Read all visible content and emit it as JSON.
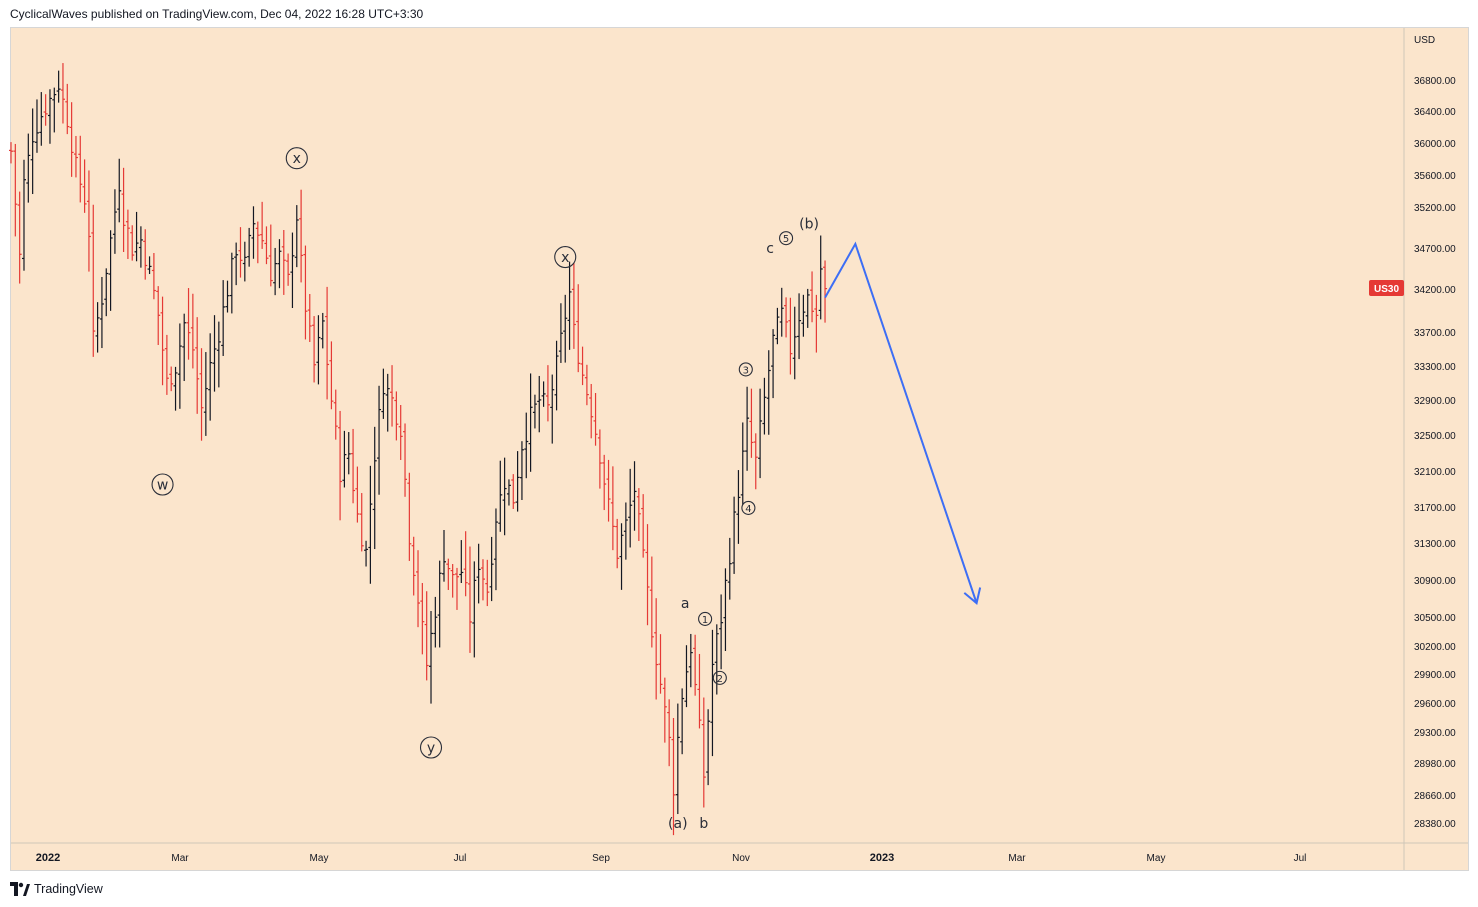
{
  "header": {
    "publish_line": "CyclicalWaves published on TradingView.com, Dec 04, 2022 16:28 UTC+3:30"
  },
  "footer": {
    "brand": "TradingView"
  },
  "chart_data": {
    "type": "ohlc",
    "symbol_badge": "US30",
    "currency": "USD",
    "last_price": 34200,
    "ylim": [
      28200,
      37300
    ],
    "x_ticks": [
      "2022",
      "Mar",
      "May",
      "Jul",
      "Sep",
      "Nov",
      "2023",
      "Mar",
      "May",
      "Jul"
    ],
    "y_ticks": [
      36800,
      36400,
      36000,
      35600,
      35200,
      34700,
      34200,
      33700,
      33300,
      32900,
      32500,
      32100,
      31700,
      31300,
      30900,
      30500,
      30200,
      29900,
      29600,
      29300,
      28980,
      28660,
      28380
    ],
    "price_path": [
      [
        0,
        35900
      ],
      [
        2,
        34600
      ],
      [
        3,
        35500
      ],
      [
        5,
        36100
      ],
      [
        7,
        36350
      ],
      [
        9,
        36550
      ],
      [
        11,
        36750
      ],
      [
        13,
        36300
      ],
      [
        15,
        35700
      ],
      [
        17,
        35300
      ],
      [
        18,
        34900
      ],
      [
        19,
        33600
      ],
      [
        21,
        34100
      ],
      [
        23,
        34800
      ],
      [
        25,
        35500
      ],
      [
        26,
        35100
      ],
      [
        28,
        34700
      ],
      [
        30,
        34800
      ],
      [
        32,
        34400
      ],
      [
        34,
        33900
      ],
      [
        36,
        33100
      ],
      [
        38,
        33300
      ],
      [
        40,
        33800
      ],
      [
        42,
        33500
      ],
      [
        44,
        32800
      ],
      [
        46,
        33300
      ],
      [
        48,
        33700
      ],
      [
        50,
        34200
      ],
      [
        52,
        34700
      ],
      [
        54,
        34500
      ],
      [
        56,
        35000
      ],
      [
        58,
        34800
      ],
      [
        60,
        34400
      ],
      [
        62,
        34600
      ],
      [
        64,
        34300
      ],
      [
        66,
        35100
      ],
      [
        67,
        34500
      ],
      [
        68,
        34000
      ],
      [
        70,
        33300
      ],
      [
        72,
        33800
      ],
      [
        74,
        32900
      ],
      [
        76,
        32100
      ],
      [
        78,
        32300
      ],
      [
        80,
        31600
      ],
      [
        82,
        31200
      ],
      [
        84,
        32300
      ],
      [
        86,
        33100
      ],
      [
        88,
        32900
      ],
      [
        90,
        32600
      ],
      [
        92,
        31400
      ],
      [
        94,
        30700
      ],
      [
        96,
        30000
      ],
      [
        98,
        30600
      ],
      [
        100,
        31200
      ],
      [
        102,
        30900
      ],
      [
        104,
        31000
      ],
      [
        106,
        30500
      ],
      [
        108,
        31100
      ],
      [
        110,
        30800
      ],
      [
        112,
        31600
      ],
      [
        114,
        32000
      ],
      [
        116,
        31800
      ],
      [
        118,
        32400
      ],
      [
        120,
        32700
      ],
      [
        122,
        32900
      ],
      [
        124,
        32800
      ],
      [
        126,
        33300
      ],
      [
        128,
        33900
      ],
      [
        129,
        34150
      ],
      [
        130,
        33700
      ],
      [
        132,
        33200
      ],
      [
        134,
        32800
      ],
      [
        136,
        32300
      ],
      [
        138,
        31700
      ],
      [
        140,
        31200
      ],
      [
        142,
        31500
      ],
      [
        144,
        31900
      ],
      [
        146,
        31100
      ],
      [
        148,
        30400
      ],
      [
        150,
        29800
      ],
      [
        152,
        29200
      ],
      [
        153,
        28760
      ],
      [
        155,
        29700
      ],
      [
        157,
        30200
      ],
      [
        159,
        29300
      ],
      [
        160,
        28860
      ],
      [
        162,
        30000
      ],
      [
        164,
        30500
      ],
      [
        166,
        31200
      ],
      [
        168,
        31900
      ],
      [
        170,
        32600
      ],
      [
        172,
        32200
      ],
      [
        174,
        32900
      ],
      [
        176,
        33600
      ],
      [
        178,
        33900
      ],
      [
        180,
        33500
      ],
      [
        182,
        33900
      ],
      [
        184,
        34100
      ],
      [
        186,
        33900
      ],
      [
        187,
        34450
      ],
      [
        188,
        34150
      ]
    ],
    "projection": {
      "points": [
        [
          188,
          34100
        ],
        [
          195,
          34750
        ],
        [
          223,
          30650
        ]
      ]
    },
    "wave_labels": [
      {
        "text": "x",
        "circled": true,
        "bar": 66,
        "price": 35810
      },
      {
        "text": "w",
        "circled": true,
        "bar": 35,
        "price": 31950
      },
      {
        "text": "y",
        "circled": true,
        "bar": 97,
        "price": 29140
      },
      {
        "text": "x",
        "circled": true,
        "bar": 128,
        "price": 34590
      },
      {
        "text": "a",
        "circled": false,
        "bar": 155.7,
        "price": 30650
      },
      {
        "text": "1",
        "circled": true,
        "bar": 160.3,
        "price": 30480
      },
      {
        "text": "2",
        "circled": true,
        "bar": 163.7,
        "price": 29860
      },
      {
        "text": "3",
        "circled": true,
        "bar": 169.7,
        "price": 33260
      },
      {
        "text": "4",
        "circled": true,
        "bar": 170.3,
        "price": 31690
      },
      {
        "text": "c",
        "circled": false,
        "bar": 175.3,
        "price": 34700
      },
      {
        "text": "5",
        "circled": true,
        "bar": 179,
        "price": 34820
      },
      {
        "text": "(b)",
        "circled": false,
        "bar": 184.3,
        "price": 35000
      },
      {
        "text": "(a)",
        "circled": false,
        "bar": 154,
        "price": 28380
      },
      {
        "text": "b",
        "circled": false,
        "bar": 160,
        "price": 28380
      }
    ],
    "colors": {
      "background": "#fbe5cc",
      "up_bar": "#131722",
      "down_bar": "#e53935",
      "projection": "#3d6ef5",
      "badge": "#e53935",
      "label_text": "#2a2e39"
    }
  }
}
